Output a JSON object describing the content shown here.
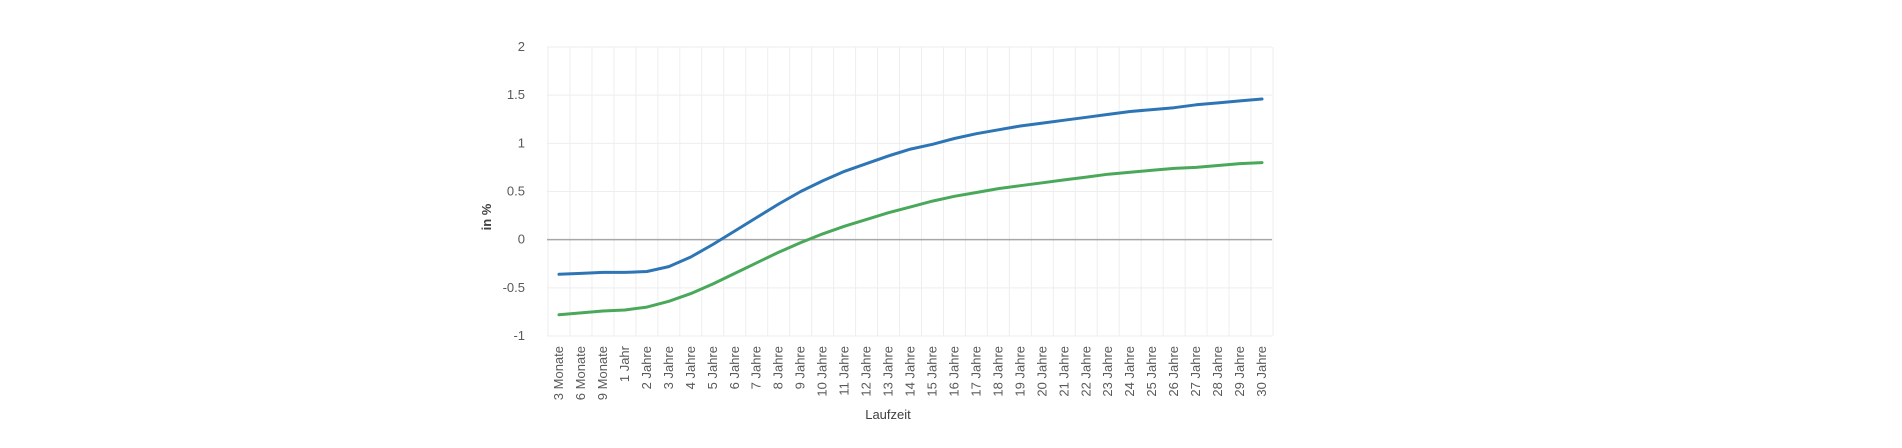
{
  "chart_data": {
    "type": "line",
    "title": "",
    "xlabel": "Laufzeit",
    "ylabel": "in %",
    "ylim": [
      -1,
      2
    ],
    "yticks": [
      -1,
      -0.5,
      0,
      0.5,
      1,
      1.5,
      2
    ],
    "ytick_labels": [
      "-1",
      "-0.5",
      "0",
      "0.5",
      "1",
      "1.5",
      "2"
    ],
    "grid": true,
    "categories": [
      "3 Monate",
      "6 Monate",
      "9 Monate",
      "1 Jahr",
      "2 Jahre",
      "3 Jahre",
      "4 Jahre",
      "5 Jahre",
      "6 Jahre",
      "7 Jahre",
      "8 Jahre",
      "9 Jahre",
      "10 Jahre",
      "11 Jahre",
      "12 Jahre",
      "13 Jahre",
      "14 Jahre",
      "15 Jahre",
      "16 Jahre",
      "17 Jahre",
      "18 Jahre",
      "19 Jahre",
      "20 Jahre",
      "21 Jahre",
      "22 Jahre",
      "23 Jahre",
      "24 Jahre",
      "25 Jahre",
      "26 Jahre",
      "27 Jahre",
      "28 Jahre",
      "29 Jahre",
      "30 Jahre"
    ],
    "series": [
      {
        "color": "#2e75b6",
        "values": [
          -0.36,
          -0.35,
          -0.34,
          -0.34,
          -0.33,
          -0.28,
          -0.18,
          -0.05,
          0.09,
          0.23,
          0.37,
          0.5,
          0.61,
          0.71,
          0.79,
          0.87,
          0.94,
          0.99,
          1.05,
          1.1,
          1.14,
          1.18,
          1.21,
          1.24,
          1.27,
          1.3,
          1.33,
          1.35,
          1.37,
          1.4,
          1.42,
          1.44,
          1.46
        ]
      },
      {
        "color": "#4aa85a",
        "values": [
          -0.78,
          -0.76,
          -0.74,
          -0.73,
          -0.7,
          -0.64,
          -0.56,
          -0.46,
          -0.35,
          -0.24,
          -0.13,
          -0.03,
          0.06,
          0.14,
          0.21,
          0.28,
          0.34,
          0.4,
          0.45,
          0.49,
          0.53,
          0.56,
          0.59,
          0.62,
          0.65,
          0.68,
          0.7,
          0.72,
          0.74,
          0.75,
          0.77,
          0.79,
          0.8
        ]
      }
    ],
    "zero_line_color": "#a6a6a6",
    "gridline_color": "#eeeeee"
  }
}
